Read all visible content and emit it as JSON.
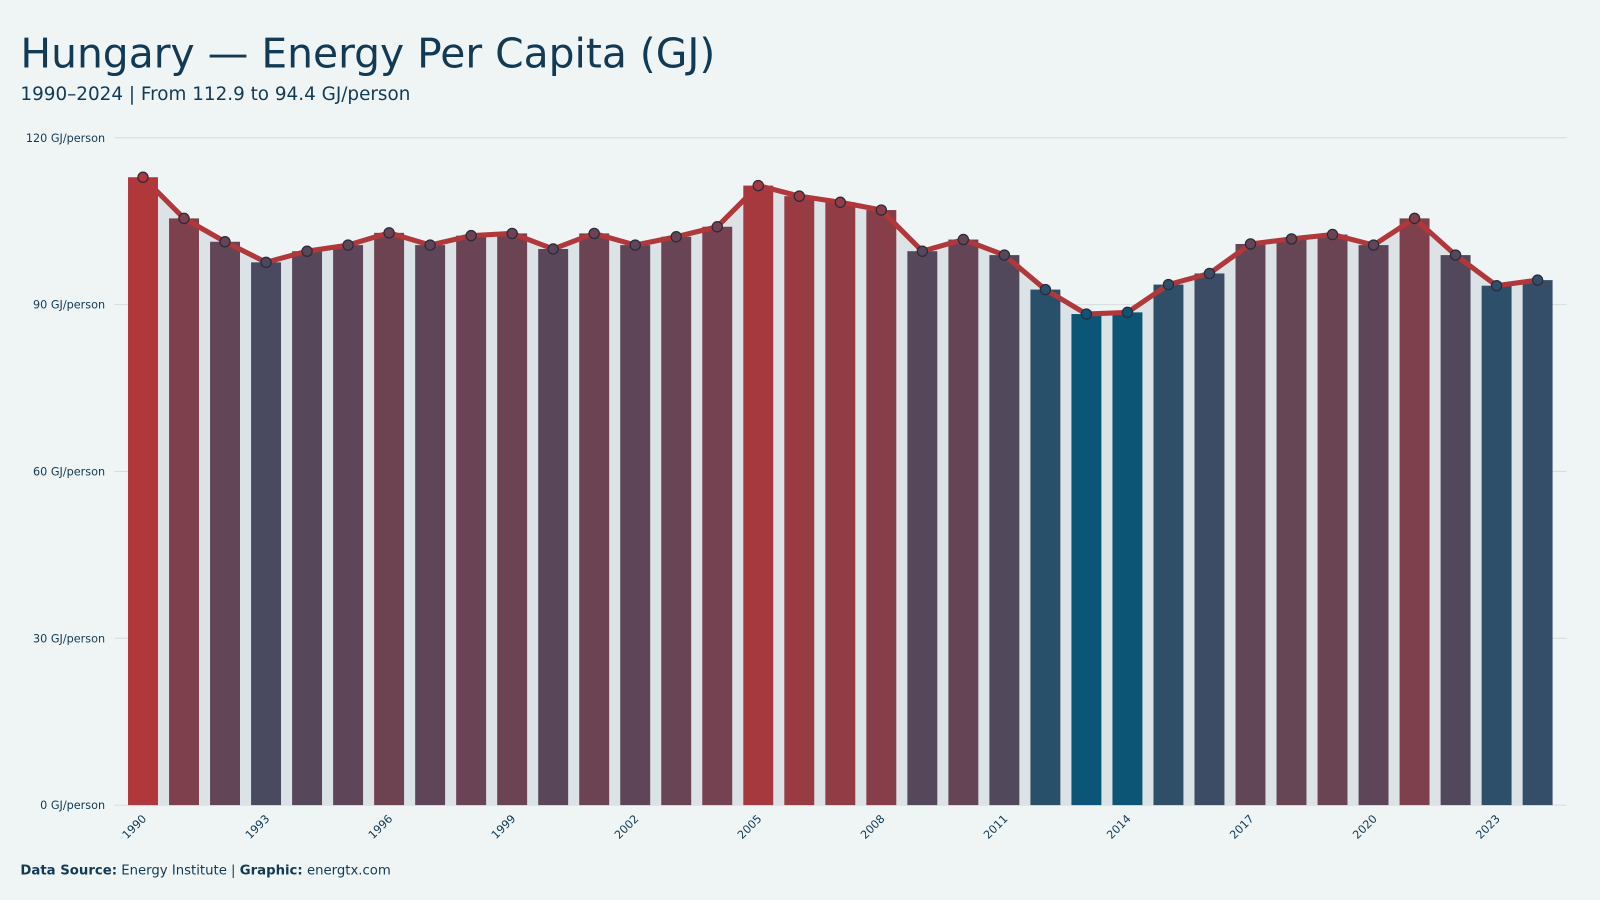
{
  "chart_data": {
    "type": "bar",
    "title": "Hungary — Energy Per Capita (GJ)",
    "subtitle": "1990–2024 | From 112.9 to 94.4 GJ/person",
    "x": [
      1990,
      1991,
      1992,
      1993,
      1994,
      1995,
      1996,
      1997,
      1998,
      1999,
      2000,
      2001,
      2002,
      2003,
      2004,
      2005,
      2006,
      2007,
      2008,
      2009,
      2010,
      2011,
      2012,
      2013,
      2014,
      2015,
      2016,
      2017,
      2018,
      2019,
      2020,
      2021,
      2022,
      2023,
      2024
    ],
    "values": [
      112.9,
      105.5,
      101.3,
      97.6,
      99.6,
      100.7,
      102.9,
      100.7,
      102.4,
      102.8,
      100.0,
      102.8,
      100.7,
      102.2,
      104.0,
      111.4,
      109.5,
      108.4,
      107.0,
      99.6,
      101.7,
      98.9,
      92.7,
      88.3,
      88.6,
      93.6,
      95.6,
      100.9,
      101.8,
      102.6,
      100.7,
      105.5,
      98.9,
      93.4,
      94.4
    ],
    "xlim": [
      1989.3,
      2024.7
    ],
    "xticks": [
      1990,
      1993,
      1996,
      1999,
      2002,
      2005,
      2008,
      2011,
      2014,
      2017,
      2020,
      2023
    ],
    "ylim": [
      0,
      120
    ],
    "yticks": [
      {
        "value": 0,
        "label": "0 GJ/person"
      },
      {
        "value": 30,
        "label": "30 GJ/person"
      },
      {
        "value": 60,
        "label": "60 GJ/person"
      },
      {
        "value": 90,
        "label": "90 GJ/person"
      },
      {
        "value": 120,
        "label": "120 GJ/person"
      }
    ],
    "grid": true,
    "color_low": "#0b5576",
    "color_high": "#b0373a",
    "line_color": "#b0373a",
    "source_label": "Data Source:",
    "source": "Energy Institute |",
    "graphic_label": "Graphic:",
    "graphic": "energtx.com"
  }
}
